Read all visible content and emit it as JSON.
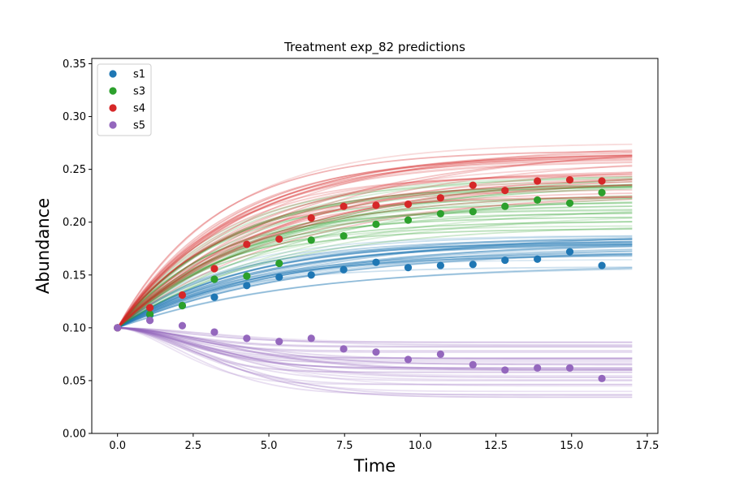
{
  "chart_data": {
    "type": "scatter",
    "title": "Treatment exp_82 predictions",
    "xlabel": "Time",
    "ylabel": "Abundance",
    "xlim": [
      -0.85,
      17.85
    ],
    "ylim": [
      0.0,
      0.355
    ],
    "xticks": [
      0.0,
      2.5,
      5.0,
      7.5,
      10.0,
      12.5,
      15.0,
      17.5
    ],
    "yticks": [
      0.0,
      0.05,
      0.1,
      0.15,
      0.2,
      0.25,
      0.3,
      0.35
    ],
    "xtick_labels": [
      "0.0",
      "2.5",
      "5.0",
      "7.5",
      "10.0",
      "12.5",
      "15.0",
      "17.5"
    ],
    "ytick_labels": [
      "0.00",
      "0.05",
      "0.10",
      "0.15",
      "0.20",
      "0.25",
      "0.30",
      "0.35"
    ],
    "grid": false,
    "legend_position": "top-left",
    "prediction_lines": "many semi-transparent predicted trajectories per series, from x = 0 to x = 17",
    "x": [
      0.0,
      1.07,
      2.14,
      3.2,
      4.27,
      5.34,
      6.4,
      7.47,
      8.54,
      9.6,
      10.67,
      11.74,
      12.8,
      13.87,
      14.94,
      16.0
    ],
    "series": [
      {
        "name": "s1",
        "color": "#1f77b4",
        "values": [
          0.1,
          0.112,
          0.121,
          0.129,
          0.14,
          0.148,
          0.15,
          0.155,
          0.162,
          0.157,
          0.159,
          0.16,
          0.164,
          0.165,
          0.172,
          0.159
        ],
        "prediction_end_range": [
          0.153,
          0.188
        ]
      },
      {
        "name": "s3",
        "color": "#2ca02c",
        "values": [
          0.1,
          0.113,
          0.121,
          0.146,
          0.149,
          0.161,
          0.183,
          0.187,
          0.198,
          0.202,
          0.208,
          0.21,
          0.215,
          0.221,
          0.218,
          0.228
        ],
        "prediction_end_range": [
          0.19,
          0.245
        ]
      },
      {
        "name": "s4",
        "color": "#d62728",
        "values": [
          0.1,
          0.119,
          0.131,
          0.156,
          0.179,
          0.184,
          0.204,
          0.215,
          0.216,
          0.217,
          0.223,
          0.235,
          0.23,
          0.239,
          0.24,
          0.239
        ],
        "prediction_end_range": [
          0.22,
          0.275
        ]
      },
      {
        "name": "s5",
        "color": "#9467bd",
        "values": [
          0.1,
          0.107,
          0.102,
          0.096,
          0.09,
          0.087,
          0.09,
          0.08,
          0.077,
          0.07,
          0.075,
          0.065,
          0.06,
          0.062,
          0.062,
          0.052
        ],
        "prediction_end_range": [
          0.032,
          0.088
        ]
      }
    ]
  }
}
